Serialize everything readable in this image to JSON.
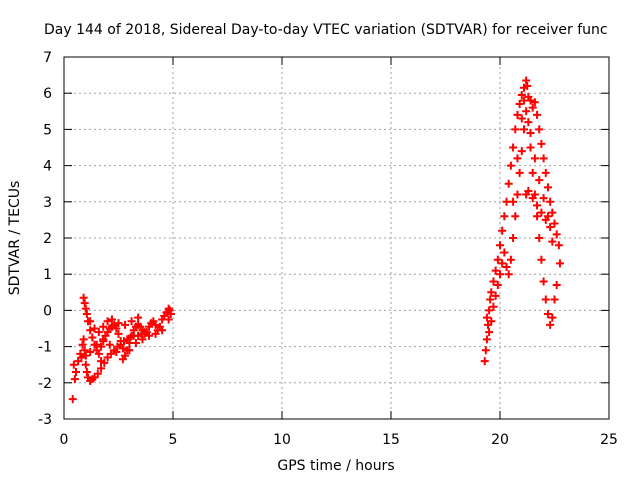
{
  "chart_data": {
    "type": "scatter",
    "title": "Day 144 of 2018, Sidereal Day-to-day VTEC variation (SDTVAR) for receiver func",
    "xlabel": "GPS time / hours",
    "ylabel": "SDTVAR / TECUs",
    "xlim": [
      0,
      25
    ],
    "ylim": [
      -3,
      7
    ],
    "xticks": [
      0,
      5,
      10,
      15,
      20,
      25
    ],
    "yticks": [
      -3,
      -2,
      -1,
      0,
      1,
      2,
      3,
      4,
      5,
      6,
      7
    ],
    "xtick_labels": [
      "0",
      "5",
      "10",
      "15",
      "20",
      "25"
    ],
    "ytick_labels": [
      "-3",
      "-2",
      "-1",
      "0",
      "1",
      "2",
      "3",
      "4",
      "5",
      "6",
      "7"
    ],
    "grid": true,
    "marker": "plus",
    "color": "#ff0000",
    "series": [
      {
        "name": "SDTVAR",
        "points": [
          [
            0.4,
            -2.45
          ],
          [
            0.45,
            -1.5
          ],
          [
            0.5,
            -1.9
          ],
          [
            0.55,
            -1.7
          ],
          [
            0.65,
            -1.4
          ],
          [
            0.75,
            -1.2
          ],
          [
            0.85,
            -0.95
          ],
          [
            0.9,
            -0.8
          ],
          [
            0.95,
            -1.1
          ],
          [
            1.0,
            -1.5
          ],
          [
            1.05,
            -1.7
          ],
          [
            1.1,
            -1.85
          ],
          [
            1.2,
            -1.95
          ],
          [
            1.3,
            -1.9
          ],
          [
            1.4,
            -1.85
          ],
          [
            1.55,
            -1.75
          ],
          [
            1.7,
            -1.6
          ],
          [
            1.85,
            -1.45
          ],
          [
            2.0,
            -1.3
          ],
          [
            2.15,
            -1.2
          ],
          [
            2.3,
            -1.1
          ],
          [
            2.45,
            -1.0
          ],
          [
            2.6,
            -0.95
          ],
          [
            2.75,
            -0.85
          ],
          [
            2.9,
            -0.8
          ],
          [
            3.05,
            -0.75
          ],
          [
            3.2,
            -0.7
          ],
          [
            3.4,
            -0.7
          ],
          [
            3.55,
            -0.65
          ],
          [
            3.7,
            -0.6
          ],
          [
            0.9,
            0.35
          ],
          [
            0.95,
            0.2
          ],
          [
            1.0,
            0.05
          ],
          [
            1.05,
            -0.1
          ],
          [
            1.1,
            -0.3
          ],
          [
            1.2,
            -0.55
          ],
          [
            1.3,
            -0.75
          ],
          [
            1.4,
            -0.95
          ],
          [
            1.5,
            -1.1
          ],
          [
            1.6,
            -1.2
          ],
          [
            1.7,
            -1.0
          ],
          [
            1.8,
            -0.85
          ],
          [
            1.9,
            -0.7
          ],
          [
            2.0,
            -0.6
          ],
          [
            2.1,
            -0.5
          ],
          [
            2.2,
            -0.45
          ],
          [
            2.3,
            -0.4
          ],
          [
            2.4,
            -0.5
          ],
          [
            2.5,
            -0.65
          ],
          [
            2.6,
            -0.85
          ],
          [
            2.7,
            -1.05
          ],
          [
            2.8,
            -1.25
          ],
          [
            2.9,
            -1.1
          ],
          [
            3.0,
            -0.9
          ],
          [
            3.1,
            -0.7
          ],
          [
            3.2,
            -0.55
          ],
          [
            3.3,
            -0.45
          ],
          [
            3.4,
            -0.4
          ],
          [
            3.5,
            -0.45
          ],
          [
            3.6,
            -0.55
          ],
          [
            3.7,
            -0.65
          ],
          [
            3.8,
            -0.6
          ],
          [
            3.9,
            -0.45
          ],
          [
            4.0,
            -0.35
          ],
          [
            4.1,
            -0.3
          ],
          [
            4.2,
            -0.4
          ],
          [
            4.3,
            -0.55
          ],
          [
            4.4,
            -0.45
          ],
          [
            4.5,
            -0.25
          ],
          [
            4.6,
            -0.15
          ],
          [
            4.7,
            -0.05
          ],
          [
            4.8,
            0.05
          ],
          [
            4.85,
            0.0
          ],
          [
            4.9,
            -0.1
          ],
          [
            4.8,
            -0.25
          ],
          [
            1.2,
            -0.3
          ],
          [
            1.4,
            -0.5
          ],
          [
            1.6,
            -0.6
          ],
          [
            1.8,
            -0.45
          ],
          [
            2.0,
            -0.3
          ],
          [
            2.2,
            -0.25
          ],
          [
            2.5,
            -0.35
          ],
          [
            2.8,
            -0.4
          ],
          [
            3.1,
            -0.3
          ],
          [
            3.4,
            -0.2
          ],
          [
            0.8,
            -1.3
          ],
          [
            1.0,
            -1.25
          ],
          [
            1.2,
            -1.15
          ],
          [
            1.5,
            -0.95
          ],
          [
            1.8,
            -0.8
          ],
          [
            2.1,
            -0.95
          ],
          [
            2.4,
            -1.15
          ],
          [
            2.7,
            -1.35
          ],
          [
            3.0,
            -1.1
          ],
          [
            3.3,
            -0.9
          ],
          [
            3.6,
            -0.8
          ],
          [
            3.9,
            -0.7
          ],
          [
            4.2,
            -0.65
          ],
          [
            4.5,
            -0.55
          ],
          [
            1.7,
            -1.4
          ],
          [
            19.3,
            -1.4
          ],
          [
            19.35,
            -1.1
          ],
          [
            19.4,
            -0.8
          ],
          [
            19.45,
            -0.4
          ],
          [
            19.5,
            0.0
          ],
          [
            19.55,
            0.3
          ],
          [
            19.6,
            0.5
          ],
          [
            19.7,
            0.8
          ],
          [
            19.8,
            1.1
          ],
          [
            19.9,
            1.4
          ],
          [
            20.0,
            1.8
          ],
          [
            20.1,
            2.2
          ],
          [
            20.2,
            2.6
          ],
          [
            20.3,
            3.0
          ],
          [
            20.4,
            3.5
          ],
          [
            20.5,
            4.0
          ],
          [
            20.6,
            4.5
          ],
          [
            20.7,
            5.0
          ],
          [
            20.8,
            5.4
          ],
          [
            20.9,
            5.7
          ],
          [
            21.0,
            5.95
          ],
          [
            21.1,
            6.15
          ],
          [
            21.2,
            6.35
          ],
          [
            21.25,
            6.2
          ],
          [
            21.3,
            5.9
          ],
          [
            21.4,
            5.8
          ],
          [
            21.5,
            5.6
          ],
          [
            21.6,
            5.75
          ],
          [
            21.7,
            5.4
          ],
          [
            21.8,
            5.0
          ],
          [
            21.9,
            4.6
          ],
          [
            22.0,
            4.2
          ],
          [
            22.1,
            3.8
          ],
          [
            22.2,
            3.4
          ],
          [
            22.3,
            3.0
          ],
          [
            22.4,
            2.7
          ],
          [
            22.5,
            2.4
          ],
          [
            22.6,
            2.1
          ],
          [
            22.7,
            1.8
          ],
          [
            22.75,
            1.3
          ],
          [
            19.4,
            -0.2
          ],
          [
            19.5,
            -0.6
          ],
          [
            19.6,
            -0.3
          ],
          [
            19.7,
            0.1
          ],
          [
            19.8,
            0.4
          ],
          [
            19.9,
            0.7
          ],
          [
            20.0,
            1.0
          ],
          [
            20.1,
            1.3
          ],
          [
            20.2,
            1.6
          ],
          [
            20.3,
            1.2
          ],
          [
            20.4,
            1.0
          ],
          [
            20.5,
            1.4
          ],
          [
            20.6,
            2.0
          ],
          [
            20.7,
            2.6
          ],
          [
            20.8,
            3.2
          ],
          [
            20.9,
            3.8
          ],
          [
            21.0,
            4.4
          ],
          [
            21.1,
            5.0
          ],
          [
            21.2,
            5.5
          ],
          [
            21.3,
            5.2
          ],
          [
            21.4,
            4.5
          ],
          [
            21.5,
            3.8
          ],
          [
            21.6,
            3.2
          ],
          [
            21.7,
            2.6
          ],
          [
            21.8,
            2.0
          ],
          [
            21.9,
            1.4
          ],
          [
            22.0,
            0.8
          ],
          [
            22.1,
            0.3
          ],
          [
            22.2,
            -0.1
          ],
          [
            22.3,
            -0.4
          ],
          [
            22.4,
            -0.2
          ],
          [
            22.5,
            0.3
          ],
          [
            22.6,
            0.7
          ],
          [
            21.2,
            3.2
          ],
          [
            21.3,
            3.3
          ],
          [
            21.5,
            3.1
          ],
          [
            21.7,
            2.9
          ],
          [
            21.9,
            2.7
          ],
          [
            22.1,
            2.5
          ],
          [
            22.3,
            2.3
          ],
          [
            20.6,
            3.0
          ],
          [
            20.8,
            4.2
          ],
          [
            21.0,
            5.3
          ],
          [
            21.1,
            5.8
          ],
          [
            21.4,
            4.9
          ],
          [
            21.6,
            4.2
          ],
          [
            21.8,
            3.6
          ],
          [
            22.0,
            3.1
          ],
          [
            22.2,
            2.6
          ],
          [
            22.4,
            1.9
          ]
        ]
      }
    ]
  }
}
